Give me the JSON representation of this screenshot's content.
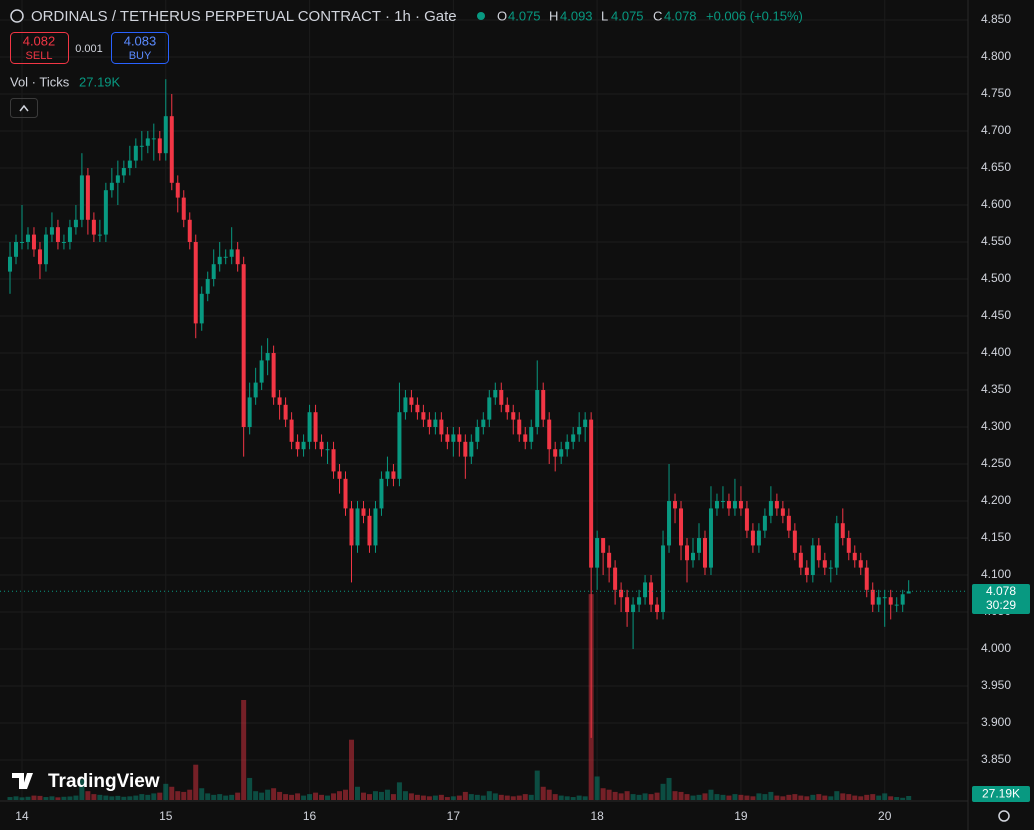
{
  "header": {
    "symbol": "ORDINALS / TETHERUS PERPETUAL CONTRACT · 1h · Gate",
    "o": "O",
    "h": "H",
    "l": "L",
    "c": "C",
    "change": "+0.006 (+0.15%)",
    "sell_price": "4.082",
    "sell": "SELL",
    "spread": "0.001",
    "buy_price": "4.083",
    "buy": "BUY",
    "vol": "Vol · Ticks",
    "countdown": "30:29",
    "logo": "TradingView"
  },
  "chart_data": {
    "type": "candlestick",
    "up_color": "#089981",
    "down_color": "#f23645",
    "xlim": [
      -1.67,
      159.4
    ],
    "xticks": [
      {
        "value": 2,
        "label": "14"
      },
      {
        "value": 26,
        "label": "15"
      },
      {
        "value": 50,
        "label": "16"
      },
      {
        "value": 74,
        "label": "17"
      },
      {
        "value": 98,
        "label": "18"
      },
      {
        "value": 122,
        "label": "19"
      },
      {
        "value": 146,
        "label": "20"
      }
    ],
    "ylim": [
      3.796,
      4.877
    ],
    "yticks": [
      {
        "value": 4.85,
        "label": "4.850"
      },
      {
        "value": 4.8,
        "label": "4.800"
      },
      {
        "value": 4.75,
        "label": "4.750"
      },
      {
        "value": 4.7,
        "label": "4.700"
      },
      {
        "value": 4.65,
        "label": "4.650"
      },
      {
        "value": 4.6,
        "label": "4.600"
      },
      {
        "value": 4.55,
        "label": "4.550"
      },
      {
        "value": 4.5,
        "label": "4.500"
      },
      {
        "value": 4.45,
        "label": "4.450"
      },
      {
        "value": 4.4,
        "label": "4.400"
      },
      {
        "value": 4.35,
        "label": "4.350"
      },
      {
        "value": 4.3,
        "label": "4.300"
      },
      {
        "value": 4.25,
        "label": "4.250"
      },
      {
        "value": 4.2,
        "label": "4.200"
      },
      {
        "value": 4.15,
        "label": "4.150"
      },
      {
        "value": 4.1,
        "label": "4.100"
      },
      {
        "value": 4.05,
        "label": "4.050"
      },
      {
        "value": 4.0,
        "label": "4.000"
      },
      {
        "value": 3.95,
        "label": "3.950"
      },
      {
        "value": 3.9,
        "label": "3.900"
      },
      {
        "value": 3.85,
        "label": "3.850"
      }
    ],
    "grid": true,
    "volume_lim": [
      0,
      5440
    ],
    "volume_label": "27.19K",
    "open": [
      4.51,
      4.53,
      4.55,
      4.55,
      4.56,
      4.54,
      4.52,
      4.56,
      4.57,
      4.55,
      4.55,
      4.57,
      4.58,
      4.64,
      4.58,
      4.56,
      4.56,
      4.62,
      4.63,
      4.64,
      4.65,
      4.66,
      4.68,
      4.68,
      4.69,
      4.69,
      4.67,
      4.72,
      4.63,
      4.61,
      4.58,
      4.55,
      4.44,
      4.48,
      4.5,
      4.52,
      4.53,
      4.53,
      4.54,
      4.52,
      4.3,
      4.34,
      4.36,
      4.39,
      4.4,
      4.34,
      4.33,
      4.31,
      4.28,
      4.27,
      4.28,
      4.32,
      4.28,
      4.27,
      4.27,
      4.24,
      4.23,
      4.19,
      4.14,
      4.19,
      4.18,
      4.14,
      4.19,
      4.23,
      4.24,
      4.23,
      4.32,
      4.34,
      4.33,
      4.32,
      4.31,
      4.3,
      4.31,
      4.29,
      4.28,
      4.29,
      4.28,
      4.26,
      4.28,
      4.3,
      4.31,
      4.34,
      4.35,
      4.33,
      4.32,
      4.31,
      4.29,
      4.28,
      4.3,
      4.35,
      4.31,
      4.27,
      4.26,
      4.27,
      4.28,
      4.29,
      4.3,
      4.31,
      4.11,
      4.15,
      4.13,
      4.11,
      4.08,
      4.07,
      4.05,
      4.06,
      4.07,
      4.09,
      4.06,
      4.05,
      4.14,
      4.2,
      4.19,
      4.14,
      4.12,
      4.13,
      4.15,
      4.11,
      4.19,
      4.2,
      4.2,
      4.19,
      4.2,
      4.19,
      4.16,
      4.14,
      4.16,
      4.18,
      4.2,
      4.19,
      4.18,
      4.16,
      4.13,
      4.11,
      4.1,
      4.14,
      4.12,
      4.11,
      4.11,
      4.17,
      4.15,
      4.13,
      4.12,
      4.11,
      4.08,
      4.06,
      4.07,
      4.07,
      4.06,
      4.06,
      4.075
    ],
    "high": [
      4.55,
      4.56,
      4.6,
      4.57,
      4.57,
      4.55,
      4.57,
      4.59,
      4.58,
      4.56,
      4.58,
      4.6,
      4.67,
      4.65,
      4.59,
      4.58,
      4.63,
      4.65,
      4.66,
      4.66,
      4.68,
      4.69,
      4.7,
      4.7,
      4.71,
      4.7,
      4.77,
      4.75,
      4.64,
      4.62,
      4.59,
      4.56,
      4.49,
      4.51,
      4.54,
      4.55,
      4.54,
      4.57,
      4.55,
      4.53,
      4.36,
      4.38,
      4.41,
      4.42,
      4.41,
      4.35,
      4.34,
      4.32,
      4.29,
      4.29,
      4.33,
      4.33,
      4.29,
      4.28,
      4.28,
      4.25,
      4.24,
      4.2,
      4.2,
      4.2,
      4.19,
      4.2,
      4.24,
      4.26,
      4.25,
      4.36,
      4.35,
      4.35,
      4.34,
      4.33,
      4.32,
      4.32,
      4.32,
      4.3,
      4.3,
      4.3,
      4.29,
      4.29,
      4.31,
      4.32,
      4.35,
      4.36,
      4.36,
      4.34,
      4.33,
      4.32,
      4.3,
      4.31,
      4.39,
      4.36,
      4.32,
      4.28,
      4.28,
      4.29,
      4.3,
      4.32,
      4.32,
      4.32,
      4.16,
      4.15,
      4.14,
      4.12,
      4.09,
      4.08,
      4.07,
      4.08,
      4.1,
      4.1,
      4.07,
      4.16,
      4.25,
      4.21,
      4.2,
      4.15,
      4.15,
      4.17,
      4.16,
      4.22,
      4.21,
      4.22,
      4.21,
      4.23,
      4.22,
      4.2,
      4.17,
      4.17,
      4.19,
      4.22,
      4.21,
      4.2,
      4.19,
      4.17,
      4.14,
      4.12,
      4.15,
      4.15,
      4.13,
      4.12,
      4.18,
      4.19,
      4.16,
      4.14,
      4.13,
      4.12,
      4.09,
      4.08,
      4.08,
      4.08,
      4.07,
      4.08,
      4.093
    ],
    "low": [
      4.48,
      4.52,
      4.54,
      4.54,
      4.53,
      4.5,
      4.51,
      4.55,
      4.54,
      4.54,
      4.54,
      4.56,
      4.57,
      4.56,
      4.55,
      4.55,
      4.55,
      4.61,
      4.6,
      4.63,
      4.64,
      4.65,
      4.66,
      4.67,
      4.66,
      4.66,
      4.66,
      4.62,
      4.59,
      4.57,
      4.54,
      4.42,
      4.43,
      4.47,
      4.49,
      4.51,
      4.52,
      4.52,
      4.51,
      4.26,
      4.29,
      4.33,
      4.35,
      4.37,
      4.33,
      4.31,
      4.3,
      4.27,
      4.26,
      4.26,
      4.27,
      4.27,
      4.26,
      4.25,
      4.23,
      4.21,
      4.18,
      4.09,
      4.13,
      4.17,
      4.13,
      4.13,
      4.18,
      4.22,
      4.22,
      4.22,
      4.31,
      4.32,
      4.31,
      4.3,
      4.29,
      4.29,
      4.28,
      4.27,
      4.26,
      4.26,
      4.23,
      4.25,
      4.27,
      4.29,
      4.3,
      4.33,
      4.32,
      4.31,
      4.29,
      4.28,
      4.27,
      4.27,
      4.29,
      4.3,
      4.25,
      4.24,
      4.25,
      4.26,
      4.27,
      4.28,
      4.28,
      3.88,
      4.08,
      4.1,
      4.09,
      4.06,
      4.05,
      4.03,
      4.0,
      4.05,
      4.06,
      4.05,
      4.04,
      4.04,
      4.13,
      4.17,
      4.12,
      4.09,
      4.11,
      4.12,
      4.1,
      4.1,
      4.18,
      4.19,
      4.18,
      4.18,
      4.18,
      4.15,
      4.13,
      4.13,
      4.15,
      4.17,
      4.18,
      4.17,
      4.15,
      4.12,
      4.1,
      4.09,
      4.09,
      4.11,
      4.1,
      4.09,
      4.1,
      4.14,
      4.12,
      4.11,
      4.1,
      4.07,
      4.05,
      4.05,
      4.03,
      4.04,
      4.05,
      4.05,
      4.075
    ],
    "close": [
      4.53,
      4.55,
      4.55,
      4.56,
      4.54,
      4.52,
      4.56,
      4.57,
      4.55,
      4.55,
      4.57,
      4.58,
      4.64,
      4.58,
      4.56,
      4.56,
      4.62,
      4.63,
      4.64,
      4.65,
      4.66,
      4.68,
      4.68,
      4.69,
      4.69,
      4.67,
      4.72,
      4.63,
      4.61,
      4.58,
      4.55,
      4.44,
      4.48,
      4.5,
      4.52,
      4.53,
      4.53,
      4.54,
      4.52,
      4.3,
      4.34,
      4.36,
      4.39,
      4.4,
      4.34,
      4.33,
      4.31,
      4.28,
      4.27,
      4.28,
      4.32,
      4.28,
      4.27,
      4.27,
      4.24,
      4.23,
      4.19,
      4.14,
      4.19,
      4.18,
      4.14,
      4.19,
      4.23,
      4.24,
      4.23,
      4.32,
      4.34,
      4.33,
      4.32,
      4.31,
      4.3,
      4.31,
      4.29,
      4.28,
      4.29,
      4.28,
      4.26,
      4.28,
      4.3,
      4.31,
      4.34,
      4.35,
      4.33,
      4.32,
      4.31,
      4.29,
      4.28,
      4.3,
      4.35,
      4.31,
      4.27,
      4.26,
      4.27,
      4.28,
      4.29,
      4.3,
      4.31,
      4.11,
      4.15,
      4.13,
      4.11,
      4.08,
      4.07,
      4.05,
      4.06,
      4.07,
      4.09,
      4.06,
      4.05,
      4.14,
      4.2,
      4.19,
      4.14,
      4.12,
      4.13,
      4.15,
      4.11,
      4.19,
      4.2,
      4.2,
      4.19,
      4.2,
      4.19,
      4.16,
      4.14,
      4.16,
      4.18,
      4.2,
      4.19,
      4.18,
      4.16,
      4.13,
      4.11,
      4.1,
      4.14,
      4.12,
      4.11,
      4.11,
      4.17,
      4.15,
      4.13,
      4.12,
      4.11,
      4.08,
      4.06,
      4.07,
      4.07,
      4.06,
      4.06,
      4.074,
      4.078
    ],
    "volume": [
      20,
      25,
      18,
      22,
      30,
      28,
      20,
      25,
      18,
      22,
      24,
      30,
      140,
      60,
      40,
      35,
      30,
      25,
      28,
      22,
      25,
      30,
      40,
      35,
      45,
      50,
      110,
      90,
      60,
      55,
      70,
      240,
      80,
      45,
      35,
      40,
      30,
      35,
      50,
      680,
      150,
      60,
      50,
      70,
      80,
      55,
      40,
      35,
      45,
      30,
      40,
      50,
      35,
      30,
      45,
      60,
      70,
      410,
      90,
      50,
      40,
      60,
      55,
      70,
      40,
      120,
      60,
      45,
      35,
      30,
      25,
      30,
      35,
      20,
      25,
      30,
      55,
      40,
      35,
      30,
      60,
      45,
      35,
      30,
      25,
      30,
      40,
      35,
      200,
      90,
      70,
      40,
      30,
      25,
      20,
      30,
      25,
      1400,
      160,
      80,
      70,
      55,
      45,
      60,
      40,
      35,
      45,
      40,
      50,
      110,
      150,
      60,
      55,
      40,
      30,
      35,
      45,
      70,
      40,
      35,
      30,
      40,
      35,
      30,
      25,
      45,
      40,
      55,
      30,
      25,
      35,
      40,
      30,
      25,
      35,
      40,
      30,
      25,
      60,
      45,
      40,
      30,
      25,
      35,
      40,
      30,
      45,
      25,
      20,
      15,
      27.19
    ]
  }
}
